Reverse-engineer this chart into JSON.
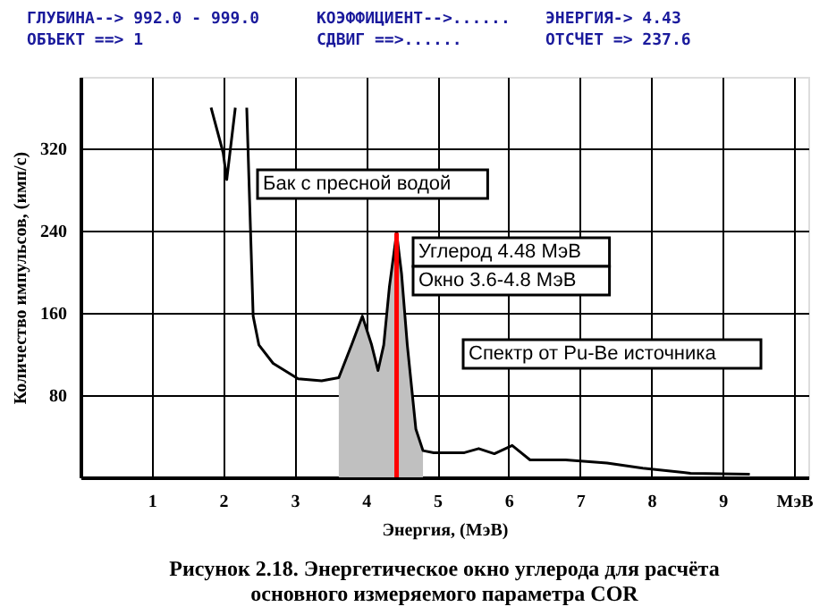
{
  "chart_data": {
    "type": "line",
    "title": "Рисунок 2.18. Энергетическое окно углерода для расчёта основного измеряемого параметра COR",
    "xlabel": "Энергия, (МэВ)",
    "ylabel": "Количество импульсов, (имп/с)",
    "xlim": [
      0,
      10.2
    ],
    "xticks": [
      1,
      2,
      3,
      4,
      5,
      6,
      7,
      8,
      9,
      {
        "value": 10,
        "label": "МэВ"
      }
    ],
    "ylim": [
      0,
      390
    ],
    "yticks": [
      80,
      160,
      240,
      320
    ],
    "grid": true,
    "series": [
      {
        "type": "area",
        "color": "#c0c0c0",
        "x": [
          3.62,
          3.8,
          3.95,
          4.08,
          4.17,
          4.25,
          4.33,
          4.43,
          4.5,
          4.58,
          4.7,
          4.8
        ],
        "values": [
          97,
          129,
          157,
          129,
          104,
          129,
          186,
          238,
          198,
          129,
          47,
          26
        ]
      },
      {
        "color": "#000000",
        "x": [
          1.83,
          2.0,
          2.05,
          2.17,
          2.25,
          2.33,
          2.42,
          2.5,
          2.7,
          3.05,
          3.38,
          3.62,
          3.8,
          3.95,
          4.08,
          4.17,
          4.25,
          4.33,
          4.43,
          4.5,
          4.58,
          4.7,
          4.8,
          4.95,
          5.38,
          5.58,
          5.8,
          6.05,
          6.3,
          6.8,
          7.38,
          7.88,
          8.55,
          9.38
        ],
        "values": [
          360,
          316,
          290,
          360,
          null,
          360,
          157,
          129,
          111,
          96,
          94,
          97,
          129,
          157,
          129,
          104,
          129,
          186,
          238,
          198,
          129,
          47,
          26,
          24,
          24,
          28,
          23,
          31,
          17,
          17,
          14,
          9,
          4,
          3
        ]
      }
    ],
    "ref_lines": [
      {
        "axis": "x",
        "value": 4.43,
        "color": "#ff0000"
      }
    ],
    "annotations": [
      "ГЛУБИНА--> 992.0 - 999.0",
      "КОЭФФИЦИЕНТ-->......",
      "ЭНЕРГИЯ-> 4.43",
      "ОБЪЕКТ ==> 1",
      "СДВИГ ==>......",
      "ОТСЧЕТ => 237.6",
      "Бак с пресной водой",
      "Углерод 4.48 МэВ",
      "Окно 3.6-4.8 МэВ",
      "Спектр от Pu-Be источника"
    ]
  }
}
